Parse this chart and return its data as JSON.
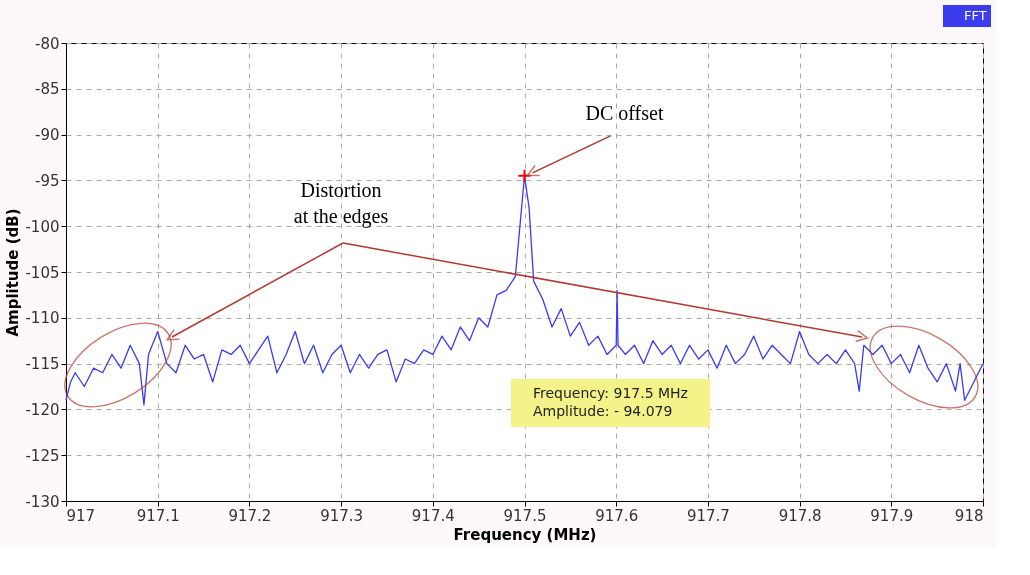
{
  "chart_data": {
    "type": "line",
    "xlabel": "Frequency (MHz)",
    "ylabel": "Amplitude (dB)",
    "xlim": [
      917,
      918
    ],
    "xticks": [
      917,
      917.1,
      917.2,
      917.3,
      917.4,
      917.5,
      917.6,
      917.7,
      917.8,
      917.9,
      918
    ],
    "ylim": [
      -130,
      -80
    ],
    "yticks": [
      -130,
      -125,
      -120,
      -115,
      -110,
      -105,
      -100,
      -95,
      -90,
      -85,
      -80
    ],
    "grid": true,
    "legend": "top right",
    "line_style": "solid",
    "marker": "none",
    "x": [
      917.0,
      917.005,
      917.01,
      917.02,
      917.03,
      917.04,
      917.05,
      917.06,
      917.07,
      917.08,
      917.085,
      917.09,
      917.1,
      917.11,
      917.12,
      917.13,
      917.14,
      917.15,
      917.16,
      917.17,
      917.18,
      917.19,
      917.2,
      917.21,
      917.22,
      917.23,
      917.24,
      917.25,
      917.26,
      917.27,
      917.28,
      917.29,
      917.3,
      917.31,
      917.32,
      917.33,
      917.34,
      917.35,
      917.36,
      917.37,
      917.38,
      917.39,
      917.4,
      917.41,
      917.42,
      917.43,
      917.44,
      917.45,
      917.46,
      917.47,
      917.48,
      917.49,
      917.495,
      917.5,
      917.505,
      917.51,
      917.52,
      917.53,
      917.54,
      917.55,
      917.56,
      917.57,
      917.58,
      917.59,
      917.6,
      917.601,
      917.602,
      917.61,
      917.62,
      917.63,
      917.64,
      917.65,
      917.66,
      917.67,
      917.68,
      917.69,
      917.7,
      917.71,
      917.72,
      917.73,
      917.74,
      917.75,
      917.76,
      917.77,
      917.78,
      917.79,
      917.8,
      917.81,
      917.82,
      917.83,
      917.84,
      917.85,
      917.86,
      917.865,
      917.87,
      917.88,
      917.89,
      917.9,
      917.91,
      917.92,
      917.93,
      917.94,
      917.95,
      917.96,
      917.97,
      917.975,
      917.98,
      917.99,
      918.0
    ],
    "series": [
      {
        "type": "scatter",
        "color": "#ff0000",
        "marker": "cross",
        "x": [
          917.5
        ],
        "values": [
          -94.5
        ]
      },
      {
        "name": "FFT",
        "color": "#3b3bef",
        "values": [
          -119,
          -117,
          -116,
          -117.5,
          -115.5,
          -116,
          -114,
          -115.5,
          -113,
          -115,
          -119.5,
          -114,
          -111.5,
          -115,
          -116,
          -113,
          -114.5,
          -114,
          -117,
          -113.5,
          -114,
          -113,
          -115,
          -113.5,
          -112,
          -116,
          -114,
          -111.5,
          -115,
          -113,
          -116,
          -114,
          -113,
          -116,
          -114,
          -115.5,
          -114,
          -113.5,
          -117,
          -114.5,
          -115,
          -113.5,
          -114,
          -112,
          -113.5,
          -111,
          -112.5,
          -110,
          -111,
          -107.5,
          -107,
          -105.5,
          -100,
          -94.5,
          -98,
          -106,
          -108,
          -111,
          -109,
          -112,
          -110.5,
          -113,
          -112,
          -114,
          -113,
          -107,
          -113,
          -114,
          -113,
          -115,
          -112.5,
          -114,
          -113,
          -115,
          -113,
          -114.5,
          -113.5,
          -115.5,
          -113,
          -115,
          -114,
          -112,
          -114.5,
          -113,
          -114,
          -115,
          -111.5,
          -114,
          -115,
          -114,
          -115,
          -113.5,
          -115,
          -118,
          -113,
          -114,
          -113,
          -115,
          -114,
          -116,
          -113,
          -115.5,
          -117,
          -115,
          -118,
          -115,
          -119,
          -117,
          -115
        ]
      }
    ],
    "annotations": [
      {
        "text": "DC offset",
        "x": 917.5,
        "y": -94.5
      },
      "Distortion\nat the edges",
      "Frequency: 917.5    MHz\nAmplitude: - 94.079"
    ]
  }
}
